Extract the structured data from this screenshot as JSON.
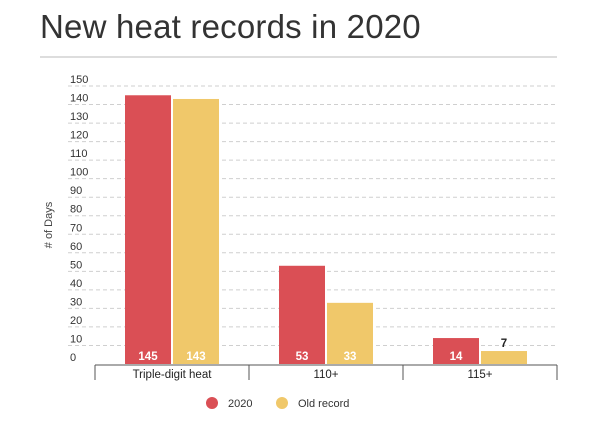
{
  "chart_data": {
    "type": "bar",
    "title": "New heat records in 2020",
    "xlabel": "",
    "ylabel": "# of Days",
    "categories": [
      "Triple-digit heat",
      "110+",
      "115+"
    ],
    "series": [
      {
        "name": "2020",
        "values": [
          145,
          53,
          14
        ],
        "color": "#da4f55"
      },
      {
        "name": "Old record",
        "values": [
          143,
          33,
          7
        ],
        "color": "#f0c86a"
      }
    ],
    "ylim": [
      0,
      150
    ],
    "yticks": [
      0,
      10,
      20,
      30,
      40,
      50,
      60,
      70,
      80,
      90,
      100,
      110,
      120,
      130,
      140,
      150
    ],
    "grid": "horizontal dashed",
    "legend_position": "bottom"
  }
}
